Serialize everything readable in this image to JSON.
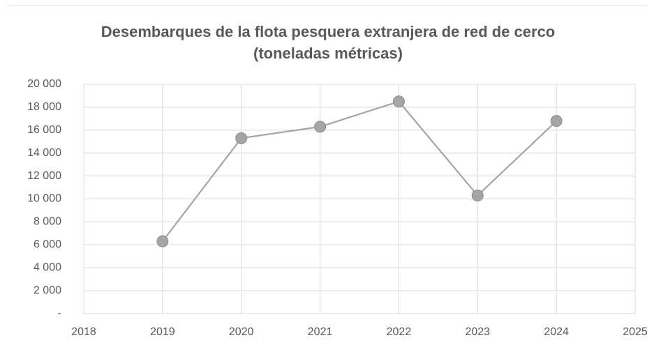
{
  "chart_data": {
    "type": "line",
    "title": "Desembarques de la flota pesquera extranjera de red de cerco (toneladas métricas)",
    "x": [
      2019,
      2020,
      2021,
      2022,
      2023,
      2024
    ],
    "series": [
      {
        "name": "Desembarques",
        "color": "#a5a5a5",
        "values": [
          6300,
          15300,
          16300,
          18500,
          10300,
          16800
        ]
      }
    ],
    "xlim": [
      2018,
      2025
    ],
    "xticks": [
      2018,
      2019,
      2020,
      2021,
      2022,
      2023,
      2024,
      2025
    ],
    "ylim": [
      0,
      20000
    ],
    "yticks": [
      {
        "value": 0,
        "label": "-"
      },
      {
        "value": 2000,
        "label": "2 000"
      },
      {
        "value": 4000,
        "label": "4 000"
      },
      {
        "value": 6000,
        "label": "6 000"
      },
      {
        "value": 8000,
        "label": "8 000"
      },
      {
        "value": 10000,
        "label": "10 000"
      },
      {
        "value": 12000,
        "label": "12 000"
      },
      {
        "value": 14000,
        "label": "14 000"
      },
      {
        "value": 16000,
        "label": "16 000"
      },
      {
        "value": 18000,
        "label": "18 000"
      },
      {
        "value": 20000,
        "label": "20 000"
      }
    ],
    "grid": true
  }
}
